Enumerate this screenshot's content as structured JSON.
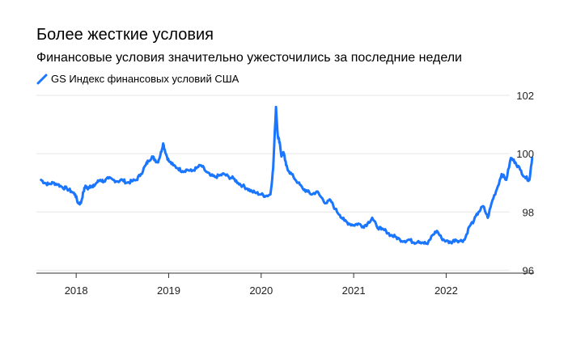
{
  "chart_data": {
    "type": "line",
    "title": "Более жесткие условия",
    "subtitle": "Финансовые условия значительно ужесточились за последние недели",
    "xlabel": "",
    "ylabel": "",
    "legend": "top-left",
    "grid": true,
    "color": "#1a75ff",
    "ylim": [
      96,
      102
    ],
    "xlim": [
      2017.57,
      2022.95
    ],
    "yticks": [
      "96",
      "98",
      "100",
      "102"
    ],
    "xticks": [
      "2018",
      "2019",
      "2020",
      "2021",
      "2022"
    ],
    "series": [
      {
        "name": "GS Индекс финансовых условий США",
        "x": [
          2017.62,
          2017.66,
          2017.7,
          2017.75,
          2017.8,
          2017.85,
          2017.9,
          2017.95,
          2017.99,
          2018.02,
          2018.05,
          2018.08,
          2018.1,
          2018.12,
          2018.15,
          2018.18,
          2018.22,
          2018.26,
          2018.3,
          2018.35,
          2018.4,
          2018.45,
          2018.5,
          2018.55,
          2018.6,
          2018.65,
          2018.7,
          2018.75,
          2018.78,
          2018.82,
          2018.85,
          2018.88,
          2018.91,
          2018.94,
          2018.97,
          2019.0,
          2019.05,
          2019.1,
          2019.15,
          2019.2,
          2019.25,
          2019.3,
          2019.35,
          2019.4,
          2019.45,
          2019.5,
          2019.55,
          2019.6,
          2019.65,
          2019.7,
          2019.75,
          2019.8,
          2019.85,
          2019.9,
          2019.95,
          2020.0,
          2020.05,
          2020.1,
          2020.13,
          2020.16,
          2020.18,
          2020.2,
          2020.22,
          2020.24,
          2020.27,
          2020.3,
          2020.35,
          2020.4,
          2020.45,
          2020.5,
          2020.55,
          2020.6,
          2020.65,
          2020.7,
          2020.75,
          2020.8,
          2020.85,
          2020.9,
          2020.95,
          2021.0,
          2021.05,
          2021.1,
          2021.15,
          2021.2,
          2021.25,
          2021.3,
          2021.35,
          2021.4,
          2021.45,
          2021.5,
          2021.55,
          2021.6,
          2021.65,
          2021.7,
          2021.75,
          2021.8,
          2021.85,
          2021.9,
          2021.95,
          2022.0,
          2022.05,
          2022.1,
          2022.15,
          2022.2,
          2022.25,
          2022.3,
          2022.35,
          2022.4,
          2022.45,
          2022.5,
          2022.55,
          2022.6,
          2022.65,
          2022.7
        ],
        "values": [
          99.1,
          99.0,
          98.95,
          99.0,
          98.95,
          98.85,
          98.8,
          98.7,
          98.6,
          98.3,
          98.3,
          98.7,
          98.9,
          98.8,
          98.9,
          98.85,
          99.0,
          99.1,
          99.05,
          99.15,
          99.1,
          99.05,
          99.1,
          99.0,
          99.05,
          99.1,
          99.3,
          99.6,
          99.75,
          99.9,
          99.8,
          99.7,
          99.95,
          100.35,
          100.0,
          99.75,
          99.6,
          99.5,
          99.4,
          99.45,
          99.4,
          99.5,
          99.6,
          99.4,
          99.25,
          99.2,
          99.25,
          99.3,
          99.2,
          99.15,
          99.0,
          98.9,
          98.8,
          98.7,
          98.65,
          98.6,
          98.55,
          98.6,
          99.5,
          101.6,
          100.6,
          100.4,
          99.9,
          100.05,
          99.6,
          99.4,
          99.2,
          99.0,
          98.8,
          98.7,
          98.6,
          98.7,
          98.5,
          98.3,
          98.4,
          98.1,
          97.9,
          97.7,
          97.6,
          97.55,
          97.6,
          97.5,
          97.6,
          97.8,
          97.5,
          97.4,
          97.35,
          97.2,
          97.15,
          97.05,
          97.0,
          97.05,
          96.95,
          97.0,
          96.95,
          96.9,
          97.2,
          97.35,
          97.1,
          97.0,
          96.95,
          97.05,
          97.0,
          97.05,
          97.5,
          97.7,
          98.0,
          98.2,
          97.8,
          98.4,
          98.8,
          99.3,
          99.1,
          99.85
        ],
        "extra_x": [
          2022.75,
          2022.8,
          2022.85,
          2022.9,
          2022.93
        ],
        "extra_values": [
          99.7,
          99.45,
          99.2,
          99.1,
          99.85
        ]
      }
    ]
  }
}
